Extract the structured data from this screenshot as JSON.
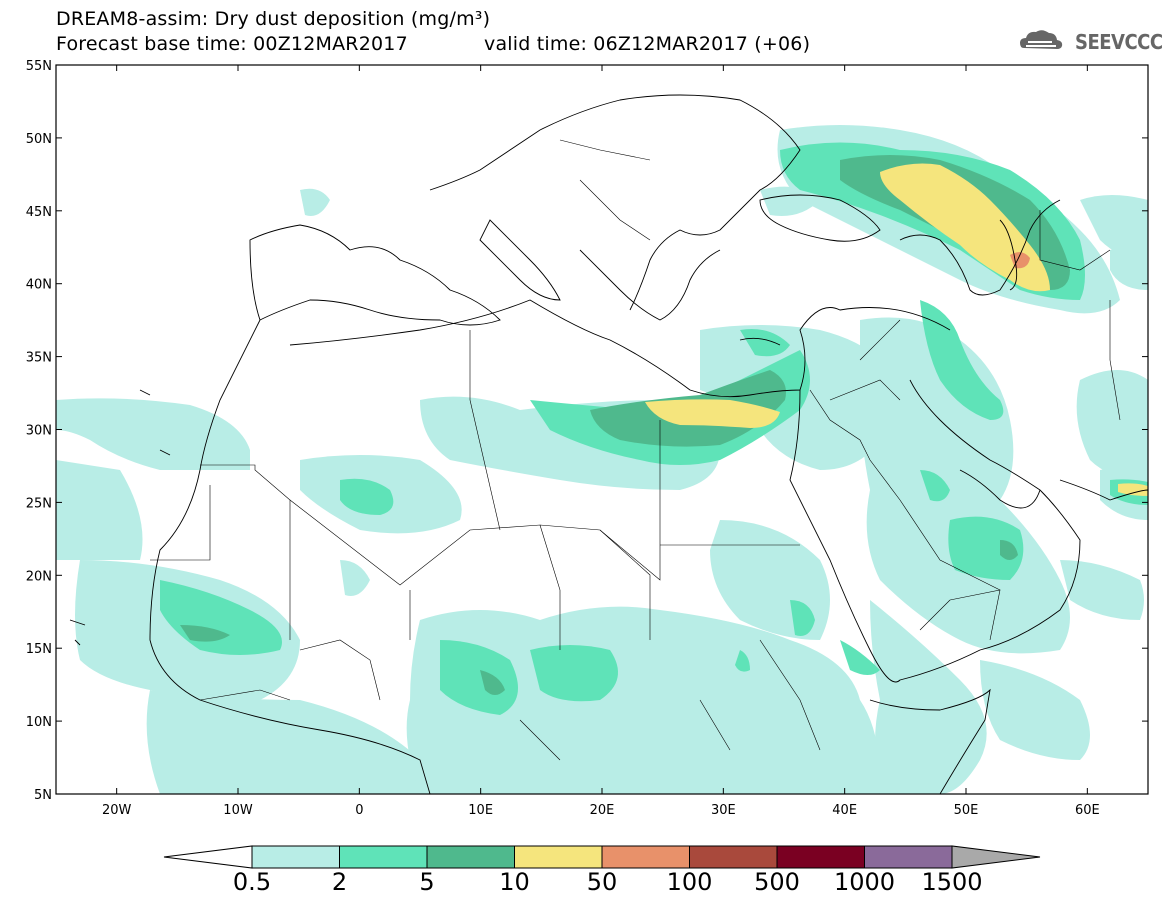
{
  "title": {
    "line1": "DREAM8-assim: Dry dust deposition (mg/m³)",
    "line2": "Forecast base time: 00Z12MAR2017",
    "line2b": "valid time: 06Z12MAR2017 (+06)"
  },
  "logo": {
    "text": "SEEVCCC",
    "icon": "cloud-icon"
  },
  "map": {
    "lon_range": [
      -25,
      65
    ],
    "lat_range": [
      5,
      55
    ],
    "lat_ticks": [
      "55N",
      "50N",
      "45N",
      "40N",
      "35N",
      "30N",
      "25N",
      "20N",
      "15N",
      "10N",
      "5N"
    ],
    "lon_ticks": [
      "20W",
      "10W",
      "0",
      "10E",
      "20E",
      "30E",
      "40E",
      "50E",
      "60E"
    ]
  },
  "colorbar": {
    "labels": [
      "0.5",
      "2",
      "5",
      "10",
      "50",
      "100",
      "500",
      "1000",
      "1500"
    ],
    "colors": [
      "#b8ede6",
      "#5fe3b8",
      "#4fb98d",
      "#f5e57d",
      "#e8916a",
      "#a9493c",
      "#7a0022",
      "#8a6a9a"
    ],
    "extend_colors": {
      "low": "#ffffff",
      "high": "#a9a9a9"
    }
  }
}
